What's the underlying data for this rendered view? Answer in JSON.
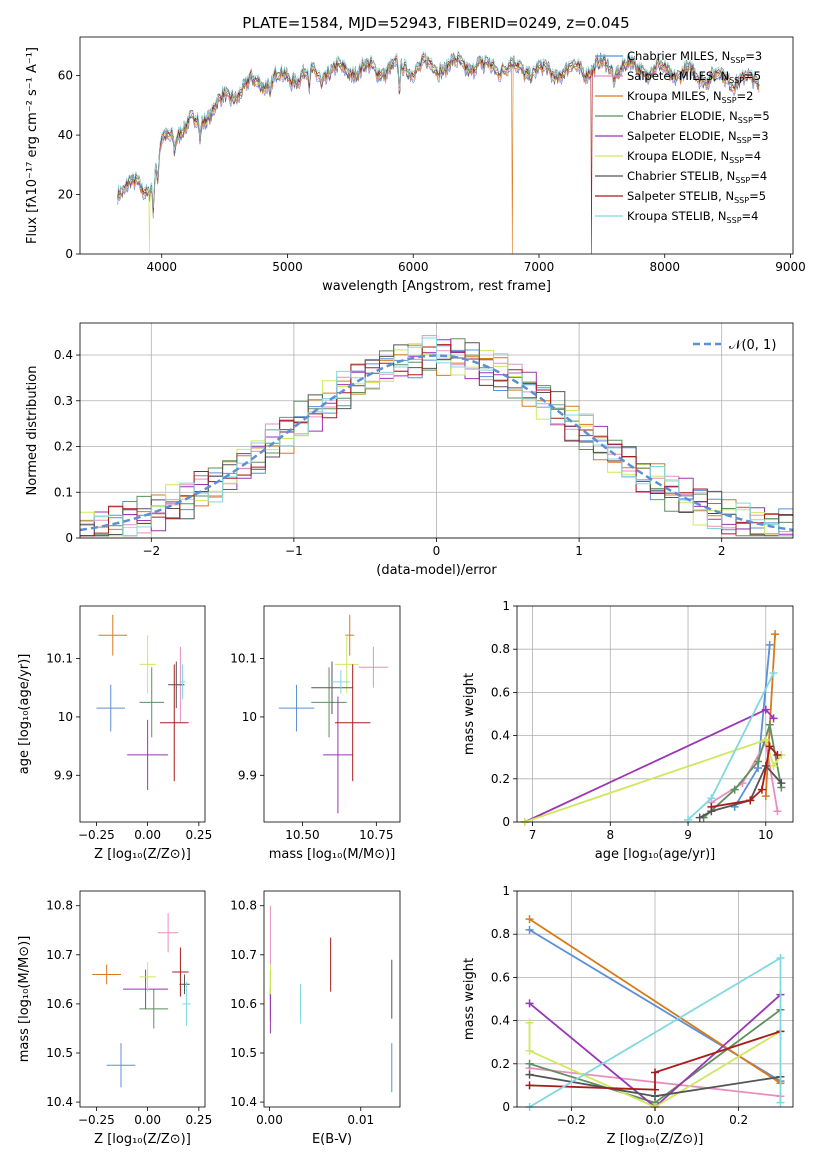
{
  "colors": [
    "#5b8fd6",
    "#e68fbf",
    "#d97a1a",
    "#5e8f5e",
    "#9b35b5",
    "#cfe85f",
    "#555555",
    "#a81c1c",
    "#80d8e0"
  ],
  "chart_data": [
    {
      "id": "spectrum",
      "type": "line",
      "title": "PLATE=1584, MJD=52943, FIBERID=0249, z=0.045",
      "xlabel": "wavelength [Angstrom, rest frame]",
      "ylabel": "Flux [fλ10⁻¹⁷ erg cm⁻² s⁻¹ A⁻¹]",
      "xlim": [
        3350,
        9020
      ],
      "ylim": [
        0,
        73
      ],
      "xticks": [
        4000,
        5000,
        6000,
        7000,
        8000,
        9000
      ],
      "yticks": [
        0,
        20,
        40,
        60
      ],
      "continuum": {
        "x": [
          3650,
          3750,
          3900,
          3950,
          4000,
          4100,
          4300,
          4500,
          4700,
          4900,
          5100,
          5300,
          5500,
          5700,
          5900,
          6100,
          6300,
          6500,
          6700,
          6900,
          7100,
          7300,
          7500,
          7700,
          7900,
          8100,
          8300,
          8500,
          8700
        ],
        "y": [
          22,
          23,
          22,
          30,
          37,
          41,
          45,
          52,
          57,
          59,
          60,
          61,
          62,
          62,
          62.5,
          63,
          63.5,
          63.5,
          63,
          62,
          61,
          62,
          63,
          63,
          62,
          61,
          60,
          59,
          58
        ]
      },
      "dropouts": [
        {
          "x": 3900,
          "series": 5
        },
        {
          "x": 6790,
          "series": 2
        },
        {
          "x": 7420,
          "series": 7
        }
      ],
      "legend": [
        {
          "label": "Chabrier MILES, N",
          "sub": "SSP",
          "value": "=3"
        },
        {
          "label": "Salpeter MILES, N",
          "sub": "SSP",
          "value": "=5"
        },
        {
          "label": "Kroupa MILES, N",
          "sub": "SSP",
          "value": "=2"
        },
        {
          "label": "Chabrier ELODIE, N",
          "sub": "SSP",
          "value": "=5"
        },
        {
          "label": "Salpeter ELODIE, N",
          "sub": "SSP",
          "value": "=3"
        },
        {
          "label": "Kroupa ELODIE, N",
          "sub": "SSP",
          "value": "=4"
        },
        {
          "label": "Chabrier STELIB, N",
          "sub": "SSP",
          "value": "=4"
        },
        {
          "label": "Salpeter STELIB, N",
          "sub": "SSP",
          "value": "=5"
        },
        {
          "label": "Kroupa STELIB, N",
          "sub": "SSP",
          "value": "=4"
        }
      ],
      "legend_position": "upper-right"
    },
    {
      "id": "residuals",
      "type": "histogram",
      "xlabel": "(data-model)/error",
      "ylabel": "Normed distribution",
      "xlim": [
        -2.5,
        2.5
      ],
      "ylim": [
        0,
        0.47
      ],
      "xticks": [
        -2,
        -1,
        0,
        1,
        2
      ],
      "yticks": [
        0.0,
        0.1,
        0.2,
        0.3,
        0.4
      ],
      "bin_width": 0.1,
      "grid": true,
      "reference": {
        "label": "𝒩(0, 1)",
        "mean": 0,
        "sigma": 1
      },
      "legend_position": "upper-right"
    },
    {
      "id": "age-vs-Z",
      "type": "errorbar",
      "xlabel": "Z [log₁₀(Z/Z⊙)]",
      "ylabel": "age  [log₁₀(age/yr)]",
      "xlim": [
        -0.33,
        0.28
      ],
      "ylim": [
        9.82,
        10.19
      ],
      "xticks": [
        -0.25,
        0.0,
        0.25
      ],
      "xticklabels": [
        "−0.25",
        "0.00",
        "0.25"
      ],
      "yticks": [
        9.9,
        10.0,
        10.1
      ],
      "points": [
        {
          "x": -0.18,
          "xerr": 0.07,
          "y": 10.015,
          "yerr": 0.04
        },
        {
          "x": 0.16,
          "xerr": 0.015,
          "y": 10.055,
          "yerr": 0.065
        },
        {
          "x": -0.17,
          "xerr": 0.07,
          "y": 10.14,
          "yerr": 0.035
        },
        {
          "x": 0.02,
          "xerr": 0.06,
          "y": 10.025,
          "yerr": 0.06
        },
        {
          "x": 0.0,
          "xerr": 0.1,
          "y": 9.935,
          "yerr": 0.06
        },
        {
          "x": 0.0,
          "xerr": 0.04,
          "y": 10.09,
          "yerr": 0.05
        },
        {
          "x": 0.14,
          "xerr": 0.04,
          "y": 10.055,
          "yerr": 0.04
        },
        {
          "x": 0.13,
          "xerr": 0.07,
          "y": 9.99,
          "yerr": 0.1
        },
        {
          "x": 0.17,
          "xerr": 0.015,
          "y": 10.06,
          "yerr": 0.03
        }
      ]
    },
    {
      "id": "age-vs-mass",
      "type": "errorbar",
      "xlabel": "mass [log₁₀(M/M⊙)]",
      "ylabel": "",
      "xlim": [
        10.37,
        10.83
      ],
      "ylim": [
        9.82,
        10.19
      ],
      "xticks": [
        10.5,
        10.75
      ],
      "xticklabels": [
        "10.50",
        "10.75"
      ],
      "yticks": [
        9.9,
        10.0,
        10.1
      ],
      "points": [
        {
          "x": 10.48,
          "xerr": 0.06,
          "y": 10.015,
          "yerr": 0.04
        },
        {
          "x": 10.74,
          "xerr": 0.05,
          "y": 10.085,
          "yerr": 0.035
        },
        {
          "x": 10.66,
          "xerr": 0.015,
          "y": 10.14,
          "yerr": 0.035
        },
        {
          "x": 10.59,
          "xerr": 0.06,
          "y": 10.025,
          "yerr": 0.06
        },
        {
          "x": 10.62,
          "xerr": 0.05,
          "y": 9.935,
          "yerr": 0.1
        },
        {
          "x": 10.65,
          "xerr": 0.04,
          "y": 10.09,
          "yerr": 0.05
        },
        {
          "x": 10.6,
          "xerr": 0.07,
          "y": 10.05,
          "yerr": 0.045
        },
        {
          "x": 10.67,
          "xerr": 0.06,
          "y": 9.99,
          "yerr": 0.1
        },
        {
          "x": 10.63,
          "xerr": 0.03,
          "y": 10.06,
          "yerr": 0.02
        }
      ]
    },
    {
      "id": "weight-vs-age",
      "type": "line",
      "xlabel": "age  [log₁₀(age/yr)]",
      "ylabel": "mass weight",
      "xlim": [
        6.8,
        10.35
      ],
      "ylim": [
        0,
        1
      ],
      "xticks": [
        7,
        8,
        9,
        10
      ],
      "yticks": [
        0.0,
        0.2,
        0.4,
        0.6,
        0.8,
        1.0
      ],
      "grid": true,
      "series": [
        {
          "x": [
            9.6,
            9.9,
            10.05
          ],
          "y": [
            0.07,
            0.25,
            0.82
          ]
        },
        {
          "x": [
            9.3,
            9.7,
            10.0,
            10.15
          ],
          "y": [
            0.09,
            0.18,
            0.37,
            0.05
          ]
        },
        {
          "x": [
            10.0,
            10.12
          ],
          "y": [
            0.12,
            0.87
          ]
        },
        {
          "x": [
            9.2,
            9.6,
            9.9,
            10.05,
            10.2
          ],
          "y": [
            0.02,
            0.15,
            0.28,
            0.45,
            0.16
          ]
        },
        {
          "x": [
            6.9,
            10.0,
            10.1
          ],
          "y": [
            0.0,
            0.52,
            0.48
          ]
        },
        {
          "x": [
            6.9,
            10.0,
            10.1,
            10.2
          ],
          "y": [
            0.0,
            0.38,
            0.26,
            0.31
          ]
        },
        {
          "x": [
            9.15,
            9.3,
            9.8,
            10.0,
            10.2
          ],
          "y": [
            0.02,
            0.05,
            0.1,
            0.26,
            0.18
          ]
        },
        {
          "x": [
            9.3,
            9.8,
            9.95,
            10.05,
            10.15
          ],
          "y": [
            0.07,
            0.1,
            0.15,
            0.35,
            0.31
          ]
        },
        {
          "x": [
            9.0,
            9.3,
            10.1
          ],
          "y": [
            0.01,
            0.11,
            0.69
          ]
        }
      ]
    },
    {
      "id": "mass-vs-Z",
      "type": "errorbar",
      "xlabel": "Z [log₁₀(Z/Z⊙)]",
      "ylabel": "mass [log₁₀(M/M⊙)]",
      "xlim": [
        -0.33,
        0.28
      ],
      "ylim": [
        10.39,
        10.83
      ],
      "xticks": [
        -0.25,
        0.0,
        0.25
      ],
      "xticklabels": [
        "−0.25",
        "0.00",
        "0.25"
      ],
      "yticks": [
        10.4,
        10.5,
        10.6,
        10.7,
        10.8
      ],
      "points": [
        {
          "x": -0.13,
          "xerr": 0.07,
          "y": 10.475,
          "yerr": 0.045
        },
        {
          "x": 0.1,
          "xerr": 0.05,
          "y": 10.745,
          "yerr": 0.04
        },
        {
          "x": -0.2,
          "xerr": 0.07,
          "y": 10.66,
          "yerr": 0.02
        },
        {
          "x": 0.03,
          "xerr": 0.07,
          "y": 10.59,
          "yerr": 0.04
        },
        {
          "x": -0.01,
          "xerr": 0.11,
          "y": 10.63,
          "yerr": 0.04
        },
        {
          "x": 0.0,
          "xerr": 0.04,
          "y": 10.655,
          "yerr": 0.03
        },
        {
          "x": 0.18,
          "xerr": 0.025,
          "y": 10.64,
          "yerr": 0.02
        },
        {
          "x": 0.16,
          "xerr": 0.04,
          "y": 10.665,
          "yerr": 0.05
        },
        {
          "x": 0.19,
          "xerr": 0.02,
          "y": 10.6,
          "yerr": 0.045
        }
      ]
    },
    {
      "id": "mass-vs-ebv",
      "type": "errorbar",
      "xlabel": "E(B-V)",
      "ylabel": "",
      "xlim": [
        -0.0006,
        0.0143
      ],
      "ylim": [
        10.39,
        10.83
      ],
      "xticks": [
        0.0,
        0.01
      ],
      "xticklabels": [
        "0.00",
        "0.01"
      ],
      "yticks": [
        10.4,
        10.5,
        10.6,
        10.7,
        10.8
      ],
      "points": [
        {
          "x": 0.0134,
          "xerr": 0,
          "y": 10.47,
          "yerr": 0.05
        },
        {
          "x": 0.0001,
          "xerr": 0,
          "y": 10.74,
          "yerr": 0.06
        },
        {
          "x": 0.0001,
          "xerr": 0,
          "y": 10.64,
          "yerr": 0.03
        },
        {
          "x": 0.0001,
          "xerr": 0,
          "y": 10.6,
          "yerr": 0.035
        },
        {
          "x": 0.0001,
          "xerr": 0,
          "y": 10.58,
          "yerr": 0.04
        },
        {
          "x": 0.0001,
          "xerr": 0,
          "y": 10.65,
          "yerr": 0.03
        },
        {
          "x": 0.0134,
          "xerr": 0,
          "y": 10.63,
          "yerr": 0.06
        },
        {
          "x": 0.0067,
          "xerr": 0,
          "y": 10.68,
          "yerr": 0.055
        },
        {
          "x": 0.0034,
          "xerr": 0,
          "y": 10.6,
          "yerr": 0.04
        }
      ]
    },
    {
      "id": "weight-vs-Z",
      "type": "line",
      "xlabel": "Z [log₁₀(Z/Z⊙)]",
      "ylabel": "mass weight",
      "xlim": [
        -0.33,
        0.33
      ],
      "ylim": [
        0,
        1
      ],
      "xticks": [
        -0.2,
        0.0,
        0.2
      ],
      "xticklabels": [
        "−0.2",
        "0.0",
        "0.2"
      ],
      "yticks": [
        0.0,
        0.2,
        0.4,
        0.6,
        0.8,
        1.0
      ],
      "grid": true,
      "series": [
        {
          "x": [
            -0.3,
            0.3
          ],
          "y": [
            0.82,
            0.12
          ]
        },
        {
          "x": [
            -0.3,
            0.3
          ],
          "y": [
            0.18,
            0.05
          ]
        },
        {
          "x": [
            -0.3,
            0.3
          ],
          "y": [
            0.87,
            0.11
          ]
        },
        {
          "x": [
            -0.3,
            0.0,
            0.3
          ],
          "y": [
            0.2,
            0.02,
            0.45
          ]
        },
        {
          "x": [
            -0.3,
            0.0,
            0.3
          ],
          "y": [
            0.48,
            0.0,
            0.52
          ]
        },
        {
          "x": [
            -0.3,
            -0.3,
            0.0,
            0.3
          ],
          "y": [
            0.39,
            0.26,
            0.0,
            0.35
          ]
        },
        {
          "x": [
            -0.3,
            0.0,
            0.3
          ],
          "y": [
            0.15,
            0.05,
            0.14
          ]
        },
        {
          "x": [
            -0.3,
            0.0,
            0.0,
            0.3
          ],
          "y": [
            0.1,
            0.08,
            0.16,
            0.35
          ]
        },
        {
          "x": [
            -0.3,
            0.3,
            0.3
          ],
          "y": [
            0.0,
            0.69,
            0.02
          ]
        }
      ]
    }
  ]
}
